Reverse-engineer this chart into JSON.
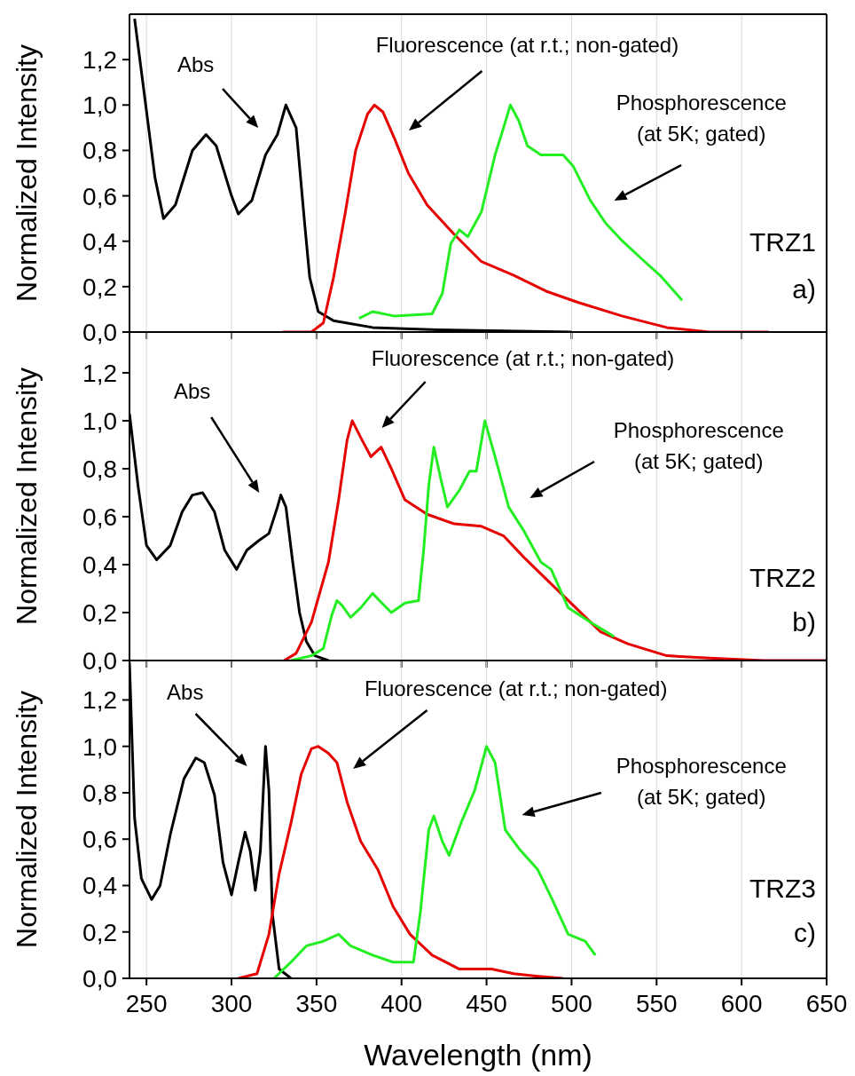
{
  "chart_data": [
    {
      "type": "line",
      "ylabel": "Normalized Intensity",
      "xlim": [
        240,
        650
      ],
      "xticks": [
        250,
        300,
        350,
        400,
        450,
        500,
        550,
        600,
        650
      ],
      "ylim": [
        0,
        1.4
      ],
      "yticks": [
        {
          "value": 0,
          "label": "0,0"
        },
        {
          "value": 0.2,
          "label": "0,2"
        },
        {
          "value": 0.4,
          "label": "0,4"
        },
        {
          "value": 0.6,
          "label": "0,6"
        },
        {
          "value": 0.8,
          "label": "0,8"
        },
        {
          "value": 1,
          "label": "1,0"
        },
        {
          "value": 1.2,
          "label": "1,2"
        }
      ],
      "grid": "x",
      "marker": "none",
      "tick_labels": "y",
      "series": [
        {
          "color": "#000000",
          "x": [
            243,
            248,
            255,
            260,
            267,
            277,
            285,
            291,
            300,
            304,
            312,
            320,
            327,
            332,
            338,
            343,
            346,
            351,
            360,
            383,
            421,
            500
          ],
          "values": [
            1.38,
            1.09,
            0.68,
            0.5,
            0.56,
            0.8,
            0.87,
            0.82,
            0.6,
            0.52,
            0.58,
            0.78,
            0.87,
            1.0,
            0.9,
            0.48,
            0.24,
            0.09,
            0.05,
            0.02,
            0.01,
            0
          ]
        },
        {
          "color": "#e60000",
          "x": [
            330,
            347,
            354,
            360,
            367,
            373,
            380,
            384,
            389,
            396,
            404,
            415,
            431,
            447,
            466,
            485,
            504,
            530,
            556,
            581,
            616
          ],
          "values": [
            0,
            0,
            0.04,
            0.24,
            0.53,
            0.8,
            0.96,
            1.0,
            0.97,
            0.85,
            0.7,
            0.56,
            0.43,
            0.31,
            0.25,
            0.18,
            0.13,
            0.07,
            0.02,
            0,
            0
          ]
        },
        {
          "color": "#22ee22",
          "x": [
            375,
            383,
            396,
            418,
            424,
            429,
            434,
            439,
            447,
            455,
            460,
            464,
            469,
            474,
            482,
            495,
            501,
            511,
            520,
            530,
            543,
            552,
            565
          ],
          "values": [
            0.06,
            0.09,
            0.07,
            0.08,
            0.17,
            0.39,
            0.45,
            0.42,
            0.53,
            0.78,
            0.9,
            1.0,
            0.93,
            0.82,
            0.78,
            0.78,
            0.73,
            0.58,
            0.48,
            0.4,
            0.31,
            0.25,
            0.14
          ]
        }
      ],
      "annotations": [
        "Abs",
        "Fluorescence (at r.t.; non-gated)",
        "Phosphorescence\n(at 5K; gated)",
        "TRZ1",
        "a)"
      ]
    },
    {
      "type": "line",
      "ylabel": "Normalized Intensity",
      "xlim": [
        240,
        650
      ],
      "xticks": [
        250,
        300,
        350,
        400,
        450,
        500,
        550,
        600,
        650
      ],
      "ylim": [
        0,
        1.37
      ],
      "yticks": [
        {
          "value": 0,
          "label": "0,0"
        },
        {
          "value": 0.2,
          "label": "0,2"
        },
        {
          "value": 0.4,
          "label": "0,4"
        },
        {
          "value": 0.6,
          "label": "0,6"
        },
        {
          "value": 0.8,
          "label": "0,8"
        },
        {
          "value": 1,
          "label": "1,0"
        },
        {
          "value": 1.2,
          "label": "1,2"
        }
      ],
      "grid": "x",
      "marker": "none",
      "tick_labels": "y",
      "series": [
        {
          "color": "#000000",
          "x": [
            240,
            245,
            250,
            256,
            264,
            271,
            277,
            283,
            290,
            296,
            303,
            309,
            316,
            322,
            327,
            329,
            332,
            336,
            340,
            344,
            349,
            357
          ],
          "values": [
            1.03,
            0.73,
            0.48,
            0.42,
            0.48,
            0.62,
            0.69,
            0.7,
            0.62,
            0.46,
            0.38,
            0.46,
            0.5,
            0.53,
            0.64,
            0.69,
            0.64,
            0.41,
            0.2,
            0.08,
            0.02,
            0
          ]
        },
        {
          "color": "#e60000",
          "x": [
            331,
            338,
            347,
            357,
            363,
            368,
            371,
            376,
            382,
            388,
            394,
            402,
            415,
            431,
            447,
            460,
            472,
            485,
            501,
            517,
            533,
            556,
            581,
            613,
            650
          ],
          "values": [
            0,
            0.03,
            0.16,
            0.41,
            0.67,
            0.92,
            1.0,
            0.93,
            0.85,
            0.89,
            0.8,
            0.67,
            0.61,
            0.57,
            0.56,
            0.52,
            0.43,
            0.34,
            0.23,
            0.12,
            0.07,
            0.02,
            0.01,
            0,
            0
          ]
        },
        {
          "color": "#22ee22",
          "x": [
            335,
            347,
            354,
            359,
            362,
            365,
            370,
            376,
            383,
            387,
            394,
            402,
            410,
            413,
            416,
            419,
            423,
            427,
            434,
            440,
            444,
            449,
            455,
            463,
            472,
            482,
            488,
            498,
            511,
            525
          ],
          "values": [
            0,
            0.02,
            0.05,
            0.19,
            0.25,
            0.23,
            0.18,
            0.22,
            0.28,
            0.25,
            0.2,
            0.24,
            0.25,
            0.46,
            0.73,
            0.89,
            0.76,
            0.64,
            0.71,
            0.79,
            0.79,
            1.0,
            0.85,
            0.64,
            0.54,
            0.41,
            0.38,
            0.22,
            0.16,
            0.1
          ]
        }
      ],
      "annotations": [
        "Abs",
        "Fluorescence (at r.t.; non-gated)",
        "Phosphorescence\n(at 5K; gated)",
        "TRZ2",
        "b)"
      ]
    },
    {
      "type": "line",
      "xlabel": "Wavelength (nm)",
      "ylabel": "Normalized Intensity",
      "xlim": [
        240,
        650
      ],
      "xticks": [
        250,
        300,
        350,
        400,
        450,
        500,
        550,
        600,
        650
      ],
      "ylim": [
        0,
        1.37
      ],
      "yticks": [
        {
          "value": 0,
          "label": "0,0"
        },
        {
          "value": 0.2,
          "label": "0,2"
        },
        {
          "value": 0.4,
          "label": "0,4"
        },
        {
          "value": 0.6,
          "label": "0,6"
        },
        {
          "value": 0.8,
          "label": "0,8"
        },
        {
          "value": 1,
          "label": "1,0"
        },
        {
          "value": 1.2,
          "label": "1,2"
        }
      ],
      "grid": "x",
      "marker": "none",
      "series": [
        {
          "color": "#000000",
          "x": [
            240,
            243,
            247,
            253,
            258,
            264,
            272,
            279,
            284,
            290,
            295,
            300,
            304,
            308,
            311,
            314,
            317,
            320,
            322,
            324,
            328,
            335
          ],
          "values": [
            1.36,
            0.69,
            0.43,
            0.34,
            0.4,
            0.62,
            0.86,
            0.95,
            0.93,
            0.79,
            0.5,
            0.36,
            0.5,
            0.63,
            0.55,
            0.38,
            0.55,
            1.0,
            0.81,
            0.28,
            0.04,
            0
          ]
        },
        {
          "color": "#e60000",
          "x": [
            304,
            315,
            322,
            328,
            335,
            341,
            347,
            351,
            357,
            362,
            368,
            376,
            386,
            395,
            405,
            418,
            434,
            453,
            466,
            479,
            495
          ],
          "values": [
            0,
            0.02,
            0.19,
            0.45,
            0.67,
            0.88,
            0.99,
            1.0,
            0.97,
            0.93,
            0.76,
            0.59,
            0.47,
            0.31,
            0.19,
            0.1,
            0.04,
            0.04,
            0.02,
            0.01,
            0
          ]
        },
        {
          "color": "#22ee22",
          "x": [
            325,
            335,
            344,
            354,
            363,
            370,
            383,
            395,
            407,
            411,
            416,
            419,
            424,
            428,
            435,
            443,
            450,
            455,
            461,
            469,
            480,
            488,
            498,
            508,
            514
          ],
          "values": [
            0,
            0.07,
            0.14,
            0.16,
            0.19,
            0.14,
            0.1,
            0.07,
            0.07,
            0.28,
            0.64,
            0.7,
            0.59,
            0.53,
            0.67,
            0.81,
            1.0,
            0.93,
            0.64,
            0.56,
            0.47,
            0.35,
            0.19,
            0.16,
            0.1
          ]
        }
      ],
      "annotations": [
        "Abs",
        "Fluorescence (at r.t.; non-gated)",
        "Phosphorescence\n(at 5K; gated)",
        "TRZ3",
        "c)"
      ]
    }
  ]
}
